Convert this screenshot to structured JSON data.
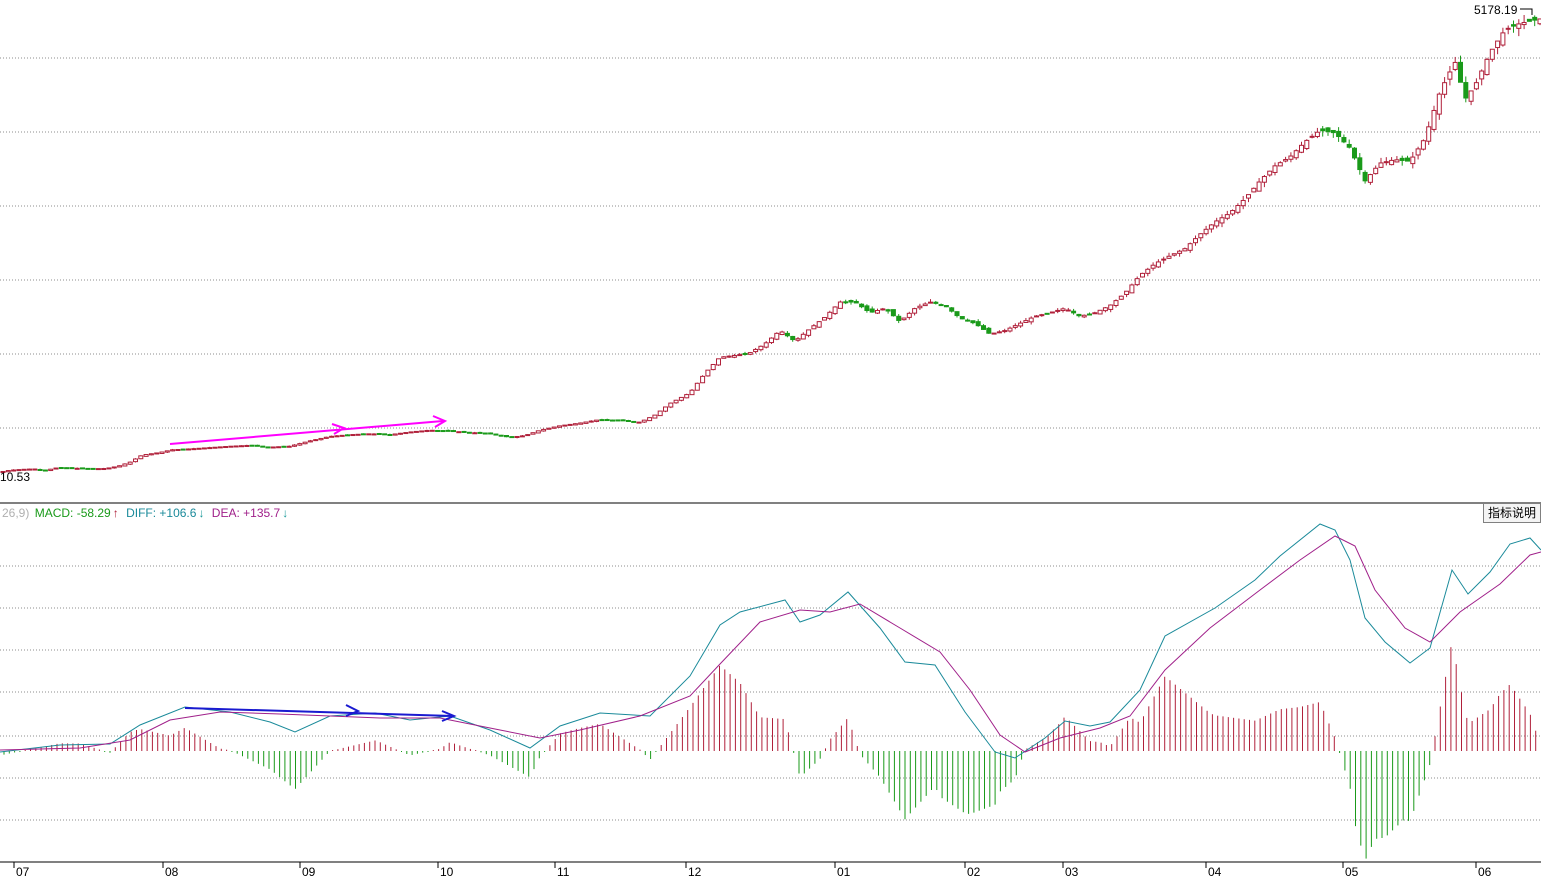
{
  "price_panel": {
    "high_label": "5178.19",
    "low_label": "10.53"
  },
  "indicator": {
    "params": "26,9)",
    "macd_label": "MACD: -58.29",
    "diff_label": "DIFF: +106.6",
    "dea_label": "DEA: +135.7",
    "help_button": "指标说明"
  },
  "colors": {
    "up": "#b0203a",
    "down": "#1a9a1a",
    "diff_line": "#1a8a9a",
    "dea_line": "#a0208a",
    "annotation_price": "#ff00ff",
    "annotation_macd": "#1a1ad0",
    "grid": "#8c8c8c",
    "axis": "#000000"
  },
  "chart_data": {
    "type": "candlestick",
    "x_ticks": [
      "07",
      "08",
      "09",
      "10",
      "11",
      "12",
      "01",
      "02",
      "03",
      "04",
      "05",
      "06"
    ],
    "price_range": [
      10.53,
      5178.19
    ],
    "candles_close_path": [
      [
        0,
        10.53
      ],
      [
        10,
        30
      ],
      [
        22,
        40
      ],
      [
        34,
        45
      ],
      [
        46,
        30
      ],
      [
        58,
        60
      ],
      [
        70,
        55
      ],
      [
        82,
        50
      ],
      [
        94,
        48
      ],
      [
        106,
        50
      ],
      [
        118,
        75
      ],
      [
        130,
        120
      ],
      [
        142,
        200
      ],
      [
        160,
        230
      ],
      [
        172,
        260
      ],
      [
        190,
        270
      ],
      [
        210,
        285
      ],
      [
        230,
        300
      ],
      [
        250,
        310
      ],
      [
        270,
        290
      ],
      [
        290,
        300
      ],
      [
        310,
        360
      ],
      [
        330,
        410
      ],
      [
        350,
        430
      ],
      [
        370,
        440
      ],
      [
        390,
        430
      ],
      [
        410,
        460
      ],
      [
        430,
        480
      ],
      [
        450,
        470
      ],
      [
        470,
        455
      ],
      [
        490,
        440
      ],
      [
        510,
        400
      ],
      [
        525,
        420
      ],
      [
        540,
        480
      ],
      [
        560,
        530
      ],
      [
        580,
        560
      ],
      [
        600,
        600
      ],
      [
        620,
        590
      ],
      [
        640,
        570
      ],
      [
        655,
        650
      ],
      [
        670,
        780
      ],
      [
        690,
        900
      ],
      [
        705,
        1120
      ],
      [
        720,
        1300
      ],
      [
        735,
        1320
      ],
      [
        750,
        1350
      ],
      [
        765,
        1450
      ],
      [
        780,
        1600
      ],
      [
        795,
        1480
      ],
      [
        810,
        1620
      ],
      [
        825,
        1750
      ],
      [
        840,
        1920
      ],
      [
        855,
        1920
      ],
      [
        870,
        1800
      ],
      [
        885,
        1850
      ],
      [
        900,
        1700
      ],
      [
        915,
        1850
      ],
      [
        930,
        1920
      ],
      [
        945,
        1880
      ],
      [
        960,
        1740
      ],
      [
        975,
        1680
      ],
      [
        990,
        1560
      ],
      [
        1005,
        1600
      ],
      [
        1020,
        1680
      ],
      [
        1035,
        1760
      ],
      [
        1050,
        1800
      ],
      [
        1065,
        1850
      ],
      [
        1080,
        1760
      ],
      [
        1095,
        1800
      ],
      [
        1110,
        1880
      ],
      [
        1125,
        2020
      ],
      [
        1140,
        2220
      ],
      [
        1155,
        2350
      ],
      [
        1170,
        2440
      ],
      [
        1185,
        2520
      ],
      [
        1200,
        2680
      ],
      [
        1215,
        2820
      ],
      [
        1230,
        2920
      ],
      [
        1245,
        3080
      ],
      [
        1260,
        3280
      ],
      [
        1275,
        3450
      ],
      [
        1290,
        3550
      ],
      [
        1305,
        3720
      ],
      [
        1320,
        3850
      ],
      [
        1335,
        3820
      ],
      [
        1350,
        3650
      ],
      [
        1365,
        3280
      ],
      [
        1380,
        3480
      ],
      [
        1395,
        3520
      ],
      [
        1410,
        3500
      ],
      [
        1425,
        3760
      ],
      [
        1440,
        4280
      ],
      [
        1455,
        4620
      ],
      [
        1465,
        4200
      ],
      [
        1475,
        4350
      ],
      [
        1490,
        4720
      ],
      [
        1505,
        4980
      ],
      [
        1520,
        5050
      ],
      [
        1540,
        5100
      ]
    ]
  }
}
